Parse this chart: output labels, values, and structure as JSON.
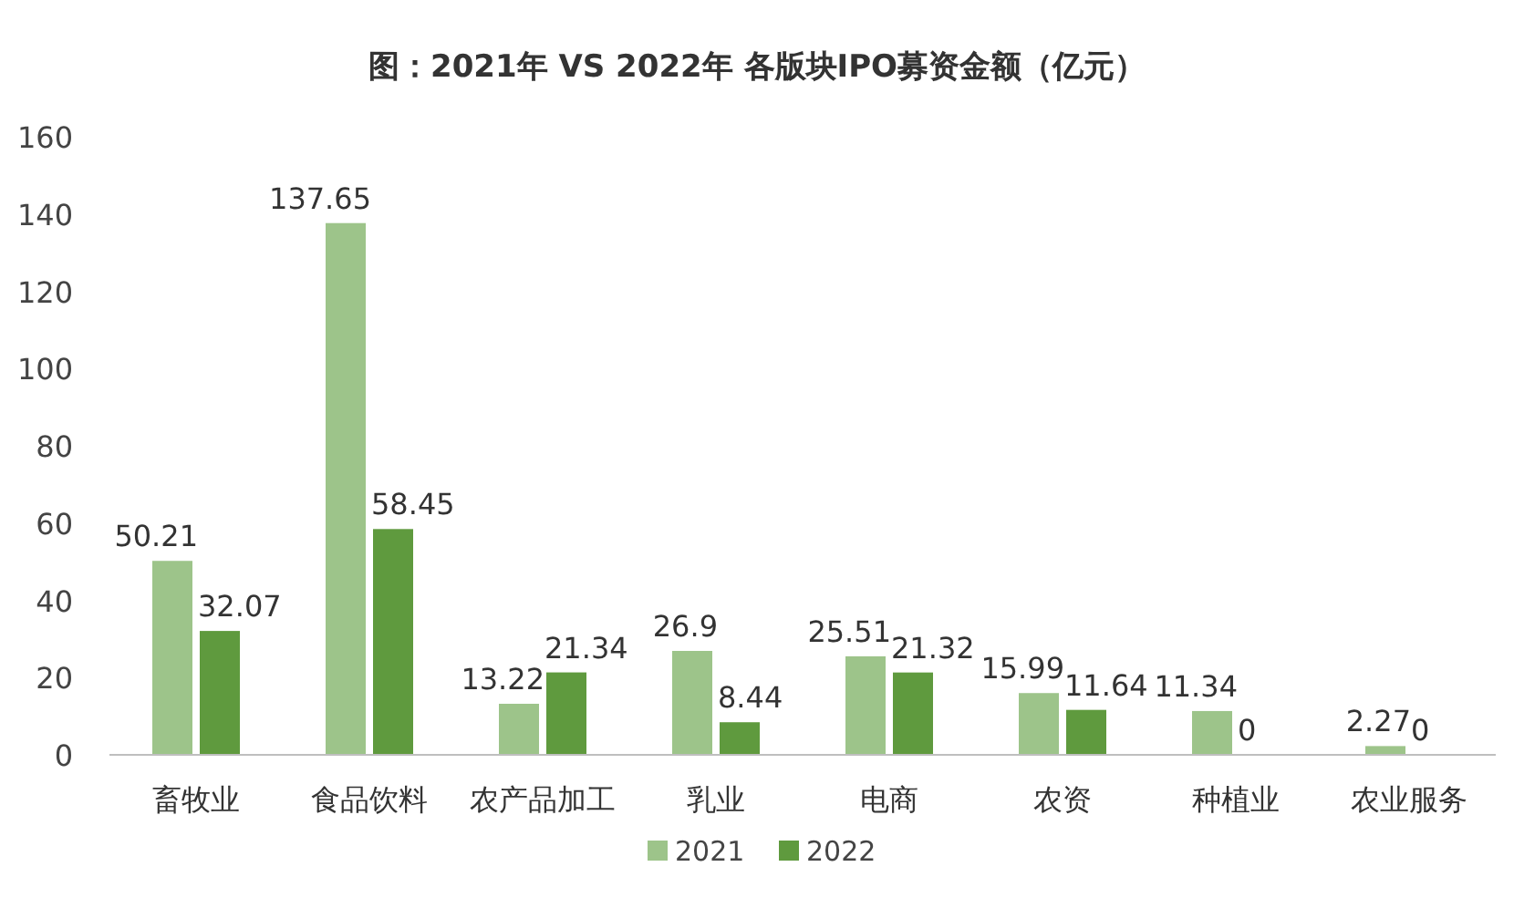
{
  "chart_data": {
    "type": "bar",
    "title": "图：2021年 VS 2022年 各版块IPO募资金额（亿元）",
    "categories": [
      "畜牧业",
      "食品饮料",
      "农产品加工",
      "乳业",
      "电商",
      "农资",
      "种植业",
      "农业服务"
    ],
    "series": [
      {
        "name": "2021",
        "color": "#9dc48a",
        "values": [
          50.21,
          137.65,
          13.22,
          26.9,
          25.51,
          15.99,
          11.34,
          2.27
        ]
      },
      {
        "name": "2022",
        "color": "#5f9a3e",
        "values": [
          32.07,
          58.45,
          21.34,
          8.44,
          21.32,
          11.64,
          0,
          0
        ]
      }
    ],
    "ylim": [
      0,
      160
    ],
    "yticks": [
      0,
      20,
      40,
      60,
      80,
      100,
      120,
      140,
      160
    ],
    "data_labels": true,
    "legend": "bottom",
    "grid": false
  }
}
